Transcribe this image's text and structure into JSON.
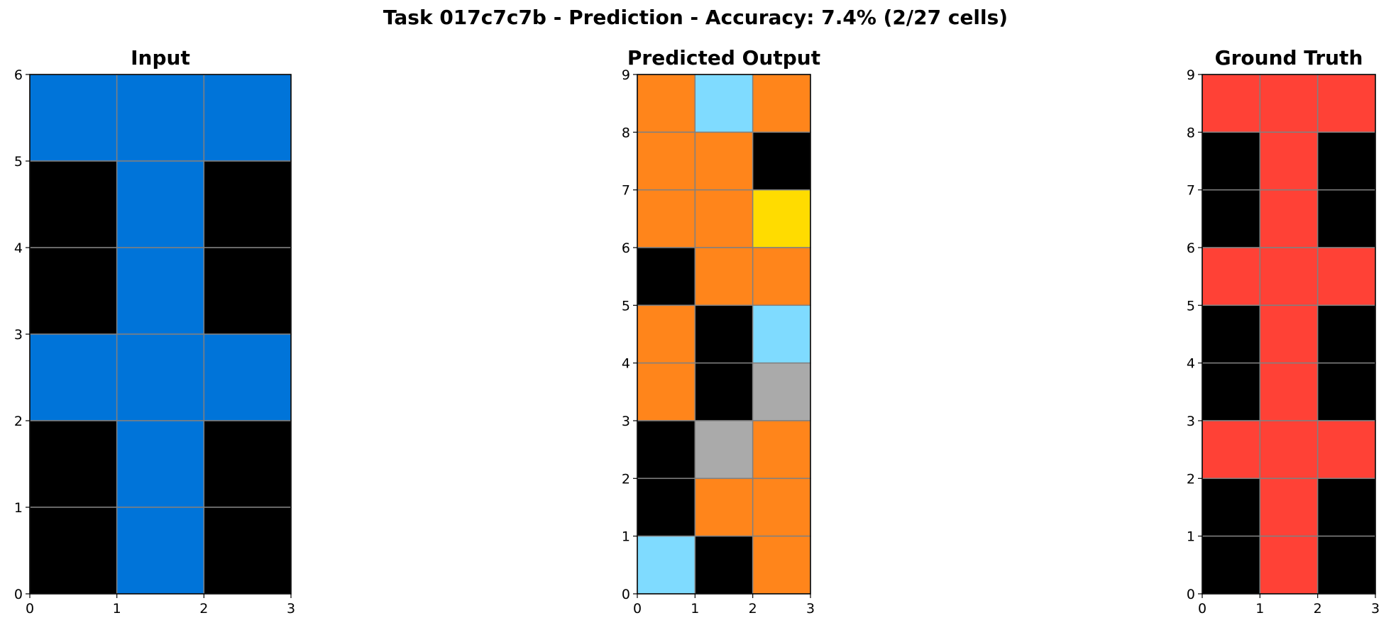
{
  "title": "Task 017c7c7b - Prediction - Accuracy: 7.4% (2/27 cells)",
  "colors": {
    "0": "#000000",
    "1": "#0074d9",
    "2": "#ff4136",
    "3": "#2ecc40",
    "4": "#ffdc00",
    "5": "#aaaaaa",
    "6": "#f012be",
    "7": "#ff851b",
    "8": "#7fdbff",
    "9": "#870c25",
    "gridline": "#808080"
  },
  "chart_data": [
    {
      "type": "heatmap",
      "title": "Input",
      "xlim": [
        0,
        3
      ],
      "ylim": [
        0,
        6
      ],
      "xticks": [
        "0",
        "1",
        "2",
        "3"
      ],
      "yticks": [
        "0",
        "1",
        "2",
        "3",
        "4",
        "5",
        "6"
      ],
      "grid": [
        [
          1,
          1,
          1
        ],
        [
          0,
          1,
          0
        ],
        [
          0,
          1,
          0
        ],
        [
          1,
          1,
          1
        ],
        [
          0,
          1,
          0
        ],
        [
          0,
          1,
          0
        ]
      ]
    },
    {
      "type": "heatmap",
      "title": "Predicted Output",
      "xlim": [
        0,
        3
      ],
      "ylim": [
        0,
        9
      ],
      "xticks": [
        "0",
        "1",
        "2",
        "3"
      ],
      "yticks": [
        "0",
        "1",
        "2",
        "3",
        "4",
        "5",
        "6",
        "7",
        "8",
        "9"
      ],
      "grid": [
        [
          7,
          8,
          7
        ],
        [
          7,
          7,
          0
        ],
        [
          7,
          7,
          4
        ],
        [
          0,
          7,
          7
        ],
        [
          7,
          0,
          8
        ],
        [
          7,
          0,
          5
        ],
        [
          0,
          5,
          7
        ],
        [
          0,
          7,
          7
        ],
        [
          8,
          0,
          7
        ]
      ]
    },
    {
      "type": "heatmap",
      "title": "Ground Truth",
      "xlim": [
        0,
        3
      ],
      "ylim": [
        0,
        9
      ],
      "xticks": [
        "0",
        "1",
        "2",
        "3"
      ],
      "yticks": [
        "0",
        "1",
        "2",
        "3",
        "4",
        "5",
        "6",
        "7",
        "8",
        "9"
      ],
      "grid": [
        [
          2,
          2,
          2
        ],
        [
          0,
          2,
          0
        ],
        [
          0,
          2,
          0
        ],
        [
          2,
          2,
          2
        ],
        [
          0,
          2,
          0
        ],
        [
          0,
          2,
          0
        ],
        [
          2,
          2,
          2
        ],
        [
          0,
          2,
          0
        ],
        [
          0,
          2,
          0
        ]
      ]
    }
  ]
}
